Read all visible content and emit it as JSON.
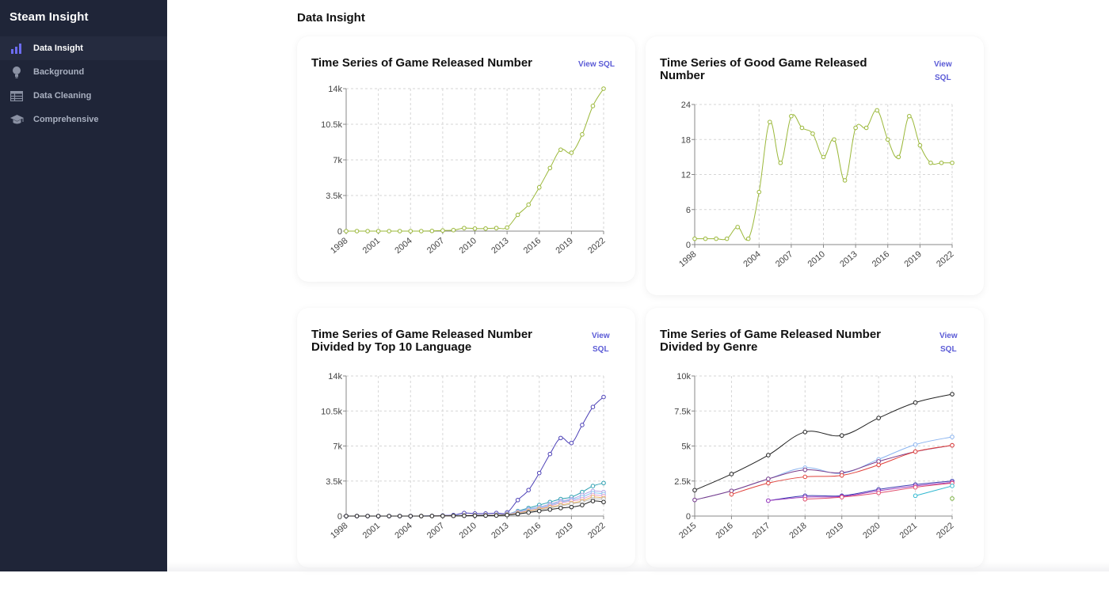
{
  "app": {
    "title": "Steam Insight"
  },
  "sidebar": {
    "items": [
      {
        "label": "Data Insight",
        "icon": "bar-chart-icon",
        "active": true
      },
      {
        "label": "Background",
        "icon": "lightbulb-icon",
        "active": false
      },
      {
        "label": "Data Cleaning",
        "icon": "table-icon",
        "active": false
      },
      {
        "label": "Comprehensive",
        "icon": "graduation-cap-icon",
        "active": false
      }
    ]
  },
  "page": {
    "title": "Data Insight"
  },
  "cards": [
    {
      "title": "Time Series of Game Released Number",
      "view_sql": "View SQL"
    },
    {
      "title_line1": "Time Series of Good Game Released",
      "title_line2": "Number",
      "view_sql_line1": "View",
      "view_sql_line2": "SQL"
    },
    {
      "title_line1": "Time Series of Game Released Number",
      "title_line2": "Divided by Top 10 Language",
      "view_sql_line1": "View",
      "view_sql_line2": "SQL"
    },
    {
      "title_line1": "Time Series of Game Released Number",
      "title_line2": "Divided by Genre",
      "view_sql_line1": "View",
      "view_sql_line2": "SQL"
    }
  ],
  "colors": {
    "accent": "#5b5bd6",
    "sidebar_bg": "#1f2538",
    "line_green": "#9bb83a"
  },
  "chart_data": [
    {
      "type": "line",
      "x": [
        1998,
        1999,
        2000,
        2001,
        2002,
        2003,
        2004,
        2005,
        2006,
        2007,
        2008,
        2009,
        2010,
        2011,
        2012,
        2013,
        2014,
        2015,
        2016,
        2017,
        2018,
        2019,
        2020,
        2021,
        2022
      ],
      "series": [
        {
          "color": "#9bb83a",
          "values": [
            0,
            0,
            0,
            0,
            0,
            0,
            0,
            0,
            20,
            60,
            100,
            300,
            250,
            250,
            300,
            350,
            1600,
            2600,
            4300,
            6200,
            8000,
            7700,
            9500,
            12300,
            14000
          ]
        }
      ],
      "y_ticks": [
        "0",
        "3.5k",
        "7k",
        "10.5k",
        "14k"
      ],
      "x_ticks": [
        "1998",
        "2001",
        "2004",
        "2007",
        "2010",
        "2013",
        "2016",
        "2019",
        "2022"
      ],
      "ylim": [
        0,
        14000
      ],
      "xlim": [
        1998,
        2022
      ],
      "grid": true
    },
    {
      "type": "line",
      "x": [
        1998,
        1999,
        2000,
        2001,
        2002,
        2003,
        2004,
        2005,
        2006,
        2007,
        2008,
        2009,
        2010,
        2011,
        2012,
        2013,
        2014,
        2015,
        2016,
        2017,
        2018,
        2019,
        2020,
        2021,
        2022
      ],
      "series": [
        {
          "color": "#9bb83a",
          "values": [
            1,
            1,
            1,
            1,
            3,
            1,
            9,
            21,
            14,
            22,
            20,
            19,
            15,
            18,
            11,
            20,
            20,
            23,
            18,
            15,
            22,
            17,
            14,
            14,
            14
          ]
        }
      ],
      "x_values_shown": [
        1998,
        1999,
        2000,
        2001,
        2002,
        2003,
        2004,
        2005,
        2006,
        2007,
        2008,
        2009,
        2010,
        2011,
        2012,
        2013,
        2014,
        2015,
        2016,
        2017,
        2018,
        2019,
        2020,
        2021,
        2022
      ],
      "y_ticks": [
        "0",
        "6",
        "12",
        "18",
        "24"
      ],
      "x_ticks": [
        "1998",
        "2004",
        "2007",
        "2010",
        "2013",
        "2016",
        "2019",
        "2022"
      ],
      "ylim": [
        0,
        24
      ],
      "xlim": [
        1998,
        2022
      ],
      "grid": true
    },
    {
      "type": "line",
      "x": [
        1998,
        1999,
        2000,
        2001,
        2002,
        2003,
        2004,
        2005,
        2006,
        2007,
        2008,
        2009,
        2010,
        2011,
        2012,
        2013,
        2014,
        2015,
        2016,
        2017,
        2018,
        2019,
        2020,
        2021,
        2022
      ],
      "series": [
        {
          "color": "#4b3fb6",
          "values": [
            0,
            0,
            0,
            0,
            0,
            0,
            0,
            0,
            20,
            60,
            100,
            300,
            250,
            250,
            300,
            350,
            1600,
            2600,
            4300,
            6200,
            7800,
            7300,
            9100,
            10900,
            11900
          ]
        },
        {
          "color": "#2a9fb0",
          "values": [
            null,
            null,
            null,
            null,
            null,
            null,
            null,
            0,
            10,
            30,
            40,
            70,
            90,
            100,
            130,
            200,
            500,
            800,
            1100,
            1400,
            1700,
            1900,
            2400,
            3000,
            3300
          ]
        },
        {
          "color": "#b3a6e6",
          "values": [
            null,
            null,
            null,
            null,
            null,
            null,
            null,
            0,
            10,
            30,
            40,
            70,
            90,
            100,
            130,
            200,
            450,
            700,
            900,
            1200,
            1500,
            1700,
            2100,
            2500,
            2400
          ]
        },
        {
          "color": "#8ac3f0",
          "values": [
            null,
            null,
            null,
            null,
            null,
            null,
            null,
            0,
            10,
            30,
            40,
            70,
            90,
            100,
            120,
            180,
            400,
            650,
            850,
            1100,
            1400,
            1600,
            1900,
            2300,
            2200
          ]
        },
        {
          "color": "#e0a0d0",
          "values": [
            null,
            null,
            null,
            null,
            null,
            null,
            null,
            0,
            10,
            20,
            30,
            60,
            80,
            90,
            110,
            160,
            350,
            550,
            750,
            1000,
            1300,
            1500,
            1700,
            2100,
            2000
          ]
        },
        {
          "color": "#e8b060",
          "values": [
            null,
            null,
            null,
            null,
            null,
            null,
            null,
            0,
            5,
            20,
            30,
            50,
            60,
            80,
            100,
            150,
            300,
            500,
            700,
            900,
            1100,
            1300,
            1500,
            1900,
            1800
          ]
        },
        {
          "color": "#c0c0c0",
          "values": [
            null,
            null,
            null,
            null,
            null,
            null,
            null,
            0,
            5,
            15,
            25,
            40,
            50,
            70,
            90,
            130,
            250,
            420,
            600,
            800,
            1000,
            1200,
            1400,
            1700,
            1700
          ]
        },
        {
          "color": "#222222",
          "values": [
            0,
            0,
            0,
            0,
            0,
            0,
            0,
            0,
            5,
            15,
            20,
            30,
            40,
            50,
            60,
            100,
            200,
            350,
            500,
            650,
            800,
            900,
            1100,
            1500,
            1400
          ]
        }
      ],
      "y_ticks": [
        "0",
        "3.5k",
        "7k",
        "10.5k",
        "14k"
      ],
      "x_ticks": [
        "1998",
        "2001",
        "2004",
        "2007",
        "2010",
        "2013",
        "2016",
        "2019",
        "2022"
      ],
      "ylim": [
        0,
        14000
      ],
      "xlim": [
        1998,
        2022
      ],
      "grid": true
    },
    {
      "type": "line",
      "x": [
        2015,
        2016,
        2017,
        2018,
        2019,
        2020,
        2021,
        2022
      ],
      "series": [
        {
          "color": "#222222",
          "values": [
            1850,
            3000,
            4350,
            6000,
            5750,
            7000,
            8100,
            8700
          ]
        },
        {
          "color": "#8ab4f0",
          "values": [
            1150,
            1800,
            2650,
            3450,
            3050,
            4050,
            5100,
            5650
          ]
        },
        {
          "color": "#7a3b8a",
          "values": [
            1150,
            1800,
            2650,
            3300,
            3100,
            3900,
            4600,
            5050
          ]
        },
        {
          "color": "#e0403a",
          "values": [
            null,
            1550,
            2350,
            2800,
            2900,
            3650,
            4600,
            5050
          ]
        },
        {
          "color": "#3a3ab0",
          "values": [
            null,
            null,
            1100,
            1450,
            1450,
            1900,
            2250,
            2500
          ]
        },
        {
          "color": "#a040c0",
          "values": [
            null,
            null,
            1100,
            1350,
            1400,
            1800,
            2150,
            2400
          ]
        },
        {
          "color": "#e05070",
          "values": [
            null,
            null,
            null,
            1200,
            1350,
            1650,
            2050,
            2350
          ]
        },
        {
          "color": "#30b8d0",
          "values": [
            null,
            null,
            null,
            null,
            null,
            null,
            1450,
            2150
          ]
        },
        {
          "color": "#7ab040",
          "values": [
            null,
            null,
            null,
            null,
            null,
            null,
            null,
            1250
          ]
        }
      ],
      "y_ticks": [
        "0",
        "2.5k",
        "5k",
        "7.5k",
        "10k"
      ],
      "x_ticks": [
        "2015",
        "2016",
        "2017",
        "2018",
        "2019",
        "2020",
        "2021",
        "2022"
      ],
      "ylim": [
        0,
        10000
      ],
      "xlim": [
        2015,
        2022
      ],
      "grid": true
    }
  ]
}
